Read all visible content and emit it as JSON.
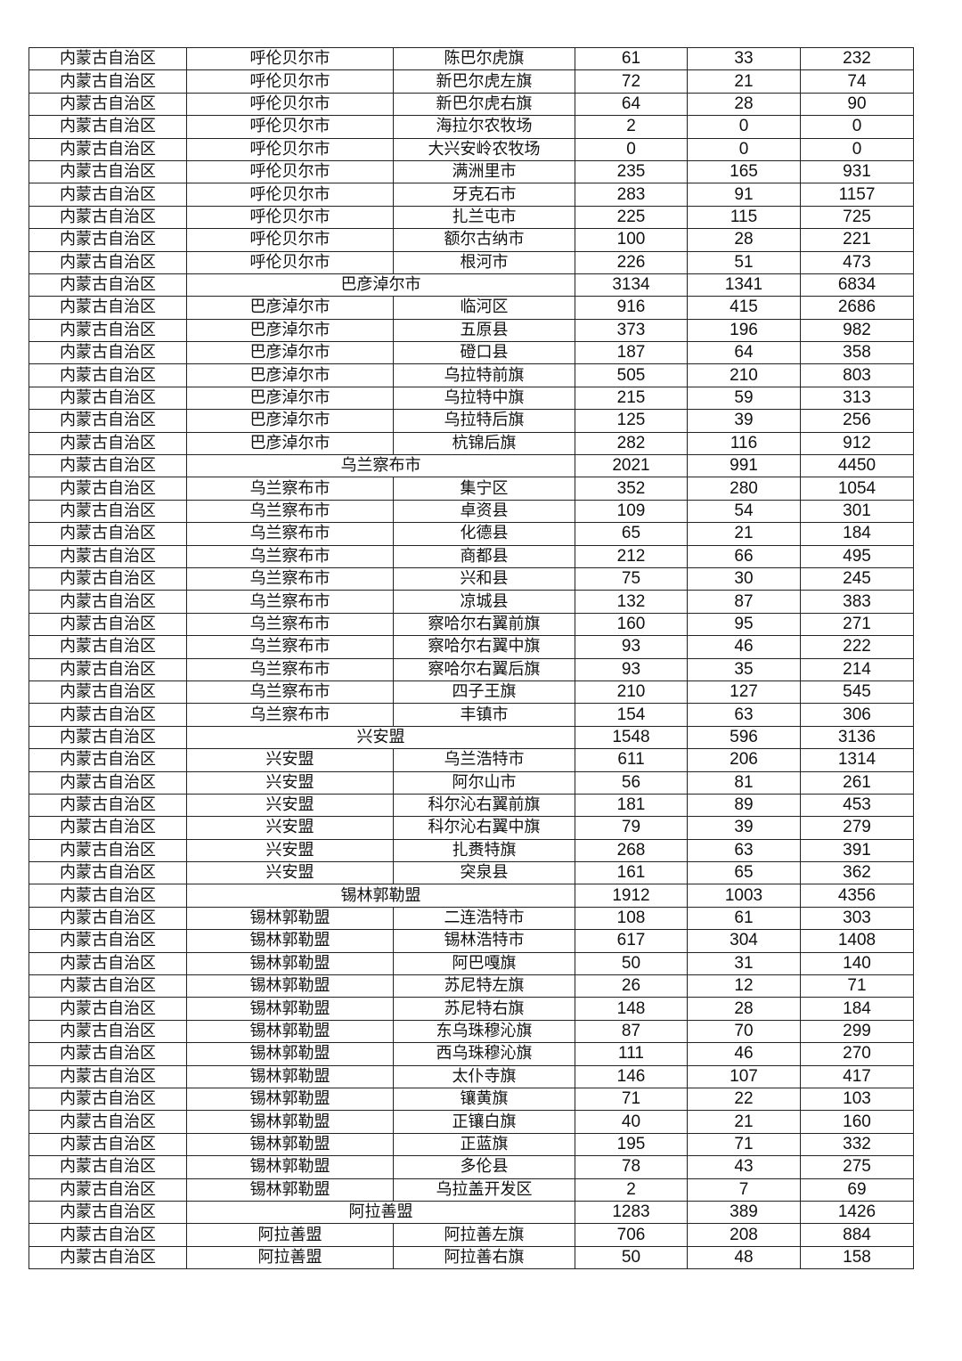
{
  "table": {
    "rows": [
      {
        "province": "内蒙古自治区",
        "city": "呼伦贝尔市",
        "county": "陈巴尔虎旗",
        "values": [
          "61",
          "33",
          "232"
        ]
      },
      {
        "province": "内蒙古自治区",
        "city": "呼伦贝尔市",
        "county": "新巴尔虎左旗",
        "values": [
          "72",
          "21",
          "74"
        ]
      },
      {
        "province": "内蒙古自治区",
        "city": "呼伦贝尔市",
        "county": "新巴尔虎右旗",
        "values": [
          "64",
          "28",
          "90"
        ]
      },
      {
        "province": "内蒙古自治区",
        "city": "呼伦贝尔市",
        "county": "海拉尔农牧场",
        "values": [
          "2",
          "0",
          "0"
        ]
      },
      {
        "province": "内蒙古自治区",
        "city": "呼伦贝尔市",
        "county": "大兴安岭农牧场",
        "values": [
          "0",
          "0",
          "0"
        ]
      },
      {
        "province": "内蒙古自治区",
        "city": "呼伦贝尔市",
        "county": "满洲里市",
        "values": [
          "235",
          "165",
          "931"
        ]
      },
      {
        "province": "内蒙古自治区",
        "city": "呼伦贝尔市",
        "county": "牙克石市",
        "values": [
          "283",
          "91",
          "1157"
        ]
      },
      {
        "province": "内蒙古自治区",
        "city": "呼伦贝尔市",
        "county": "扎兰屯市",
        "values": [
          "225",
          "115",
          "725"
        ]
      },
      {
        "province": "内蒙古自治区",
        "city": "呼伦贝尔市",
        "county": "额尔古纳市",
        "values": [
          "100",
          "28",
          "221"
        ]
      },
      {
        "province": "内蒙古自治区",
        "city": "呼伦贝尔市",
        "county": "根河市",
        "values": [
          "226",
          "51",
          "473"
        ]
      },
      {
        "province": "内蒙古自治区",
        "city": "巴彦淖尔市",
        "values": [
          "3134",
          "1341",
          "6834"
        ]
      },
      {
        "province": "内蒙古自治区",
        "city": "巴彦淖尔市",
        "county": "临河区",
        "values": [
          "916",
          "415",
          "2686"
        ]
      },
      {
        "province": "内蒙古自治区",
        "city": "巴彦淖尔市",
        "county": "五原县",
        "values": [
          "373",
          "196",
          "982"
        ]
      },
      {
        "province": "内蒙古自治区",
        "city": "巴彦淖尔市",
        "county": "磴口县",
        "values": [
          "187",
          "64",
          "358"
        ]
      },
      {
        "province": "内蒙古自治区",
        "city": "巴彦淖尔市",
        "county": "乌拉特前旗",
        "values": [
          "505",
          "210",
          "803"
        ]
      },
      {
        "province": "内蒙古自治区",
        "city": "巴彦淖尔市",
        "county": "乌拉特中旗",
        "values": [
          "215",
          "59",
          "313"
        ]
      },
      {
        "province": "内蒙古自治区",
        "city": "巴彦淖尔市",
        "county": "乌拉特后旗",
        "values": [
          "125",
          "39",
          "256"
        ]
      },
      {
        "province": "内蒙古自治区",
        "city": "巴彦淖尔市",
        "county": "杭锦后旗",
        "values": [
          "282",
          "116",
          "912"
        ]
      },
      {
        "province": "内蒙古自治区",
        "city": "乌兰察布市",
        "values": [
          "2021",
          "991",
          "4450"
        ]
      },
      {
        "province": "内蒙古自治区",
        "city": "乌兰察布市",
        "county": "集宁区",
        "values": [
          "352",
          "280",
          "1054"
        ]
      },
      {
        "province": "内蒙古自治区",
        "city": "乌兰察布市",
        "county": "卓资县",
        "values": [
          "109",
          "54",
          "301"
        ]
      },
      {
        "province": "内蒙古自治区",
        "city": "乌兰察布市",
        "county": "化德县",
        "values": [
          "65",
          "21",
          "184"
        ]
      },
      {
        "province": "内蒙古自治区",
        "city": "乌兰察布市",
        "county": "商都县",
        "values": [
          "212",
          "66",
          "495"
        ]
      },
      {
        "province": "内蒙古自治区",
        "city": "乌兰察布市",
        "county": "兴和县",
        "values": [
          "75",
          "30",
          "245"
        ]
      },
      {
        "province": "内蒙古自治区",
        "city": "乌兰察布市",
        "county": "凉城县",
        "values": [
          "132",
          "87",
          "383"
        ]
      },
      {
        "province": "内蒙古自治区",
        "city": "乌兰察布市",
        "county": "察哈尔右翼前旗",
        "values": [
          "160",
          "95",
          "271"
        ]
      },
      {
        "province": "内蒙古自治区",
        "city": "乌兰察布市",
        "county": "察哈尔右翼中旗",
        "values": [
          "93",
          "46",
          "222"
        ]
      },
      {
        "province": "内蒙古自治区",
        "city": "乌兰察布市",
        "county": "察哈尔右翼后旗",
        "values": [
          "93",
          "35",
          "214"
        ]
      },
      {
        "province": "内蒙古自治区",
        "city": "乌兰察布市",
        "county": "四子王旗",
        "values": [
          "210",
          "127",
          "545"
        ]
      },
      {
        "province": "内蒙古自治区",
        "city": "乌兰察布市",
        "county": "丰镇市",
        "values": [
          "154",
          "63",
          "306"
        ]
      },
      {
        "province": "内蒙古自治区",
        "city": "兴安盟",
        "values": [
          "1548",
          "596",
          "3136"
        ]
      },
      {
        "province": "内蒙古自治区",
        "city": "兴安盟",
        "county": "乌兰浩特市",
        "values": [
          "611",
          "206",
          "1314"
        ]
      },
      {
        "province": "内蒙古自治区",
        "city": "兴安盟",
        "county": "阿尔山市",
        "values": [
          "56",
          "81",
          "261"
        ]
      },
      {
        "province": "内蒙古自治区",
        "city": "兴安盟",
        "county": "科尔沁右翼前旗",
        "values": [
          "181",
          "89",
          "453"
        ]
      },
      {
        "province": "内蒙古自治区",
        "city": "兴安盟",
        "county": "科尔沁右翼中旗",
        "values": [
          "79",
          "39",
          "279"
        ]
      },
      {
        "province": "内蒙古自治区",
        "city": "兴安盟",
        "county": "扎赉特旗",
        "values": [
          "268",
          "63",
          "391"
        ]
      },
      {
        "province": "内蒙古自治区",
        "city": "兴安盟",
        "county": "突泉县",
        "values": [
          "161",
          "65",
          "362"
        ]
      },
      {
        "province": "内蒙古自治区",
        "city": "锡林郭勒盟",
        "values": [
          "1912",
          "1003",
          "4356"
        ]
      },
      {
        "province": "内蒙古自治区",
        "city": "锡林郭勒盟",
        "county": "二连浩特市",
        "values": [
          "108",
          "61",
          "303"
        ]
      },
      {
        "province": "内蒙古自治区",
        "city": "锡林郭勒盟",
        "county": "锡林浩特市",
        "values": [
          "617",
          "304",
          "1408"
        ]
      },
      {
        "province": "内蒙古自治区",
        "city": "锡林郭勒盟",
        "county": "阿巴嘎旗",
        "values": [
          "50",
          "31",
          "140"
        ]
      },
      {
        "province": "内蒙古自治区",
        "city": "锡林郭勒盟",
        "county": "苏尼特左旗",
        "values": [
          "26",
          "12",
          "71"
        ]
      },
      {
        "province": "内蒙古自治区",
        "city": "锡林郭勒盟",
        "county": "苏尼特右旗",
        "values": [
          "148",
          "28",
          "184"
        ]
      },
      {
        "province": "内蒙古自治区",
        "city": "锡林郭勒盟",
        "county": "东乌珠穆沁旗",
        "values": [
          "87",
          "70",
          "299"
        ]
      },
      {
        "province": "内蒙古自治区",
        "city": "锡林郭勒盟",
        "county": "西乌珠穆沁旗",
        "values": [
          "111",
          "46",
          "270"
        ]
      },
      {
        "province": "内蒙古自治区",
        "city": "锡林郭勒盟",
        "county": "太仆寺旗",
        "values": [
          "146",
          "107",
          "417"
        ]
      },
      {
        "province": "内蒙古自治区",
        "city": "锡林郭勒盟",
        "county": "镶黄旗",
        "values": [
          "71",
          "22",
          "103"
        ]
      },
      {
        "province": "内蒙古自治区",
        "city": "锡林郭勒盟",
        "county": "正镶白旗",
        "values": [
          "40",
          "21",
          "160"
        ]
      },
      {
        "province": "内蒙古自治区",
        "city": "锡林郭勒盟",
        "county": "正蓝旗",
        "values": [
          "195",
          "71",
          "332"
        ]
      },
      {
        "province": "内蒙古自治区",
        "city": "锡林郭勒盟",
        "county": "多伦县",
        "values": [
          "78",
          "43",
          "275"
        ]
      },
      {
        "province": "内蒙古自治区",
        "city": "锡林郭勒盟",
        "county": "乌拉盖开发区",
        "values": [
          "2",
          "7",
          "69"
        ]
      },
      {
        "province": "内蒙古自治区",
        "city": "阿拉善盟",
        "values": [
          "1283",
          "389",
          "1426"
        ]
      },
      {
        "province": "内蒙古自治区",
        "city": "阿拉善盟",
        "county": "阿拉善左旗",
        "values": [
          "706",
          "208",
          "884"
        ]
      },
      {
        "province": "内蒙古自治区",
        "city": "阿拉善盟",
        "county": "阿拉善右旗",
        "values": [
          "50",
          "48",
          "158"
        ]
      }
    ]
  }
}
